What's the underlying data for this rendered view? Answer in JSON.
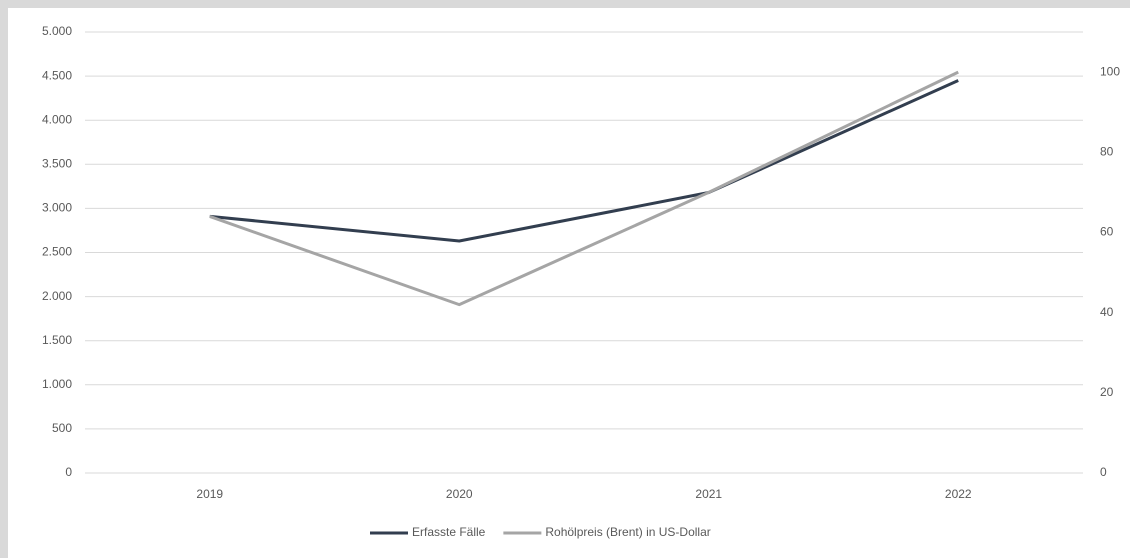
{
  "chart_data": {
    "type": "line",
    "categories": [
      "2019",
      "2020",
      "2021",
      "2022"
    ],
    "series": [
      {
        "name": "Erfasste Fälle",
        "color": "#323e4f",
        "values": [
          2910,
          2630,
          3180,
          4450
        ]
      },
      {
        "name": "Rohölpreis (Brent) in US-Dollar",
        "color": "#a5a5a5",
        "values": [
          64,
          42,
          70,
          100
        ],
        "axis": "y2"
      }
    ],
    "ylim": [
      0,
      5000
    ],
    "yticks": [
      0,
      500,
      {
        "value": 1000,
        "label": "1.000"
      },
      {
        "value": 1500,
        "label": "1.500"
      },
      {
        "value": 2000,
        "label": "2.000"
      },
      {
        "value": 2500,
        "label": "2.500"
      },
      {
        "value": 3000,
        "label": "3.000"
      },
      {
        "value": 3500,
        "label": "3.500"
      },
      {
        "value": 4000,
        "label": "4.000"
      },
      {
        "value": 4500,
        "label": "4.500"
      },
      {
        "value": 5000,
        "label": "5.000"
      }
    ],
    "y2lim": [
      0,
      110
    ],
    "y2ticks": [
      0,
      20,
      40,
      60,
      80,
      100
    ],
    "grid": true,
    "legend": "bottom"
  }
}
